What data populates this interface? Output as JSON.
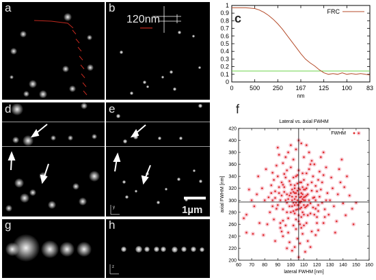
{
  "panel_labels": {
    "a": "a",
    "b": "b",
    "c": "c",
    "d": "d",
    "e": "e",
    "f": "f",
    "g": "g",
    "h": "h"
  },
  "annotation_120nm": "120nm",
  "scale_bar_label": "1µm",
  "axis_glyphs": {
    "y": "y",
    "z": "z"
  },
  "chart_data": [
    {
      "id": "c",
      "type": "line",
      "series": [
        {
          "name": "FRC",
          "color": "#b44a28",
          "x": [
            0,
            200,
            400,
            600,
            800,
            1000,
            1200,
            1400,
            1600,
            1800,
            2000,
            2200,
            2400,
            2600,
            2800,
            3000,
            3200,
            3400,
            3600,
            3800,
            4000,
            4200,
            4400,
            4600,
            4800,
            5000,
            5200,
            5400,
            5600,
            5800,
            6000
          ],
          "y": [
            0.97,
            0.97,
            0.97,
            0.97,
            0.965,
            0.96,
            0.94,
            0.91,
            0.87,
            0.82,
            0.76,
            0.69,
            0.61,
            0.53,
            0.45,
            0.37,
            0.3,
            0.25,
            0.21,
            0.16,
            0.12,
            0.1,
            0.11,
            0.1,
            0.12,
            0.1,
            0.11,
            0.1,
            0.11,
            0.1,
            0.09
          ]
        }
      ],
      "threshold": {
        "value": 0.143,
        "color": "#6bd34a"
      },
      "xlim": [
        0,
        6000
      ],
      "ylim": [
        0,
        1
      ],
      "x_ticks": [
        0,
        1000,
        2000,
        3000,
        4000,
        5000,
        6000
      ],
      "x_tick_labels": [
        "0",
        "500",
        "250",
        "167",
        "125",
        "100",
        "83"
      ],
      "y_ticks": [
        0,
        0.1,
        0.2,
        0.3,
        0.4,
        0.5,
        0.6,
        0.7,
        0.8,
        0.9,
        1
      ],
      "y_tick_labels": [
        "0",
        "0.1",
        "0.2",
        "0.3",
        "0.4",
        "0.5",
        "0.6",
        "0.7",
        "0.8",
        "0.9",
        "1"
      ],
      "xlabel": "nm",
      "ylabel": "",
      "legend_label": "FRC",
      "legend_position": "top-right"
    },
    {
      "id": "f",
      "type": "scatter",
      "title": "Lateral vs. axial FWHM",
      "xlabel": "lateral FWHM [nm]",
      "ylabel": "axial FWHM [nm]",
      "xlim": [
        60,
        160
      ],
      "ylim": [
        200,
        420
      ],
      "x_ticks": [
        60,
        70,
        80,
        90,
        100,
        110,
        120,
        130,
        140,
        150,
        160
      ],
      "y_ticks": [
        200,
        220,
        240,
        260,
        280,
        300,
        320,
        340,
        360,
        380,
        400,
        420
      ],
      "crosshair": {
        "x": 106,
        "y": 297
      },
      "legend_label": "FWHM",
      "legend_position": "top-right",
      "point_color": "#e03030",
      "points": [
        [
          103,
          312
        ],
        [
          107,
          298
        ],
        [
          110,
          305
        ],
        [
          99,
          290
        ],
        [
          112,
          320
        ],
        [
          105,
          285
        ],
        [
          108,
          330
        ],
        [
          101,
          300
        ],
        [
          115,
          295
        ],
        [
          97,
          310
        ],
        [
          106,
          275
        ],
        [
          109,
          345
        ],
        [
          104,
          268
        ],
        [
          111,
          288
        ],
        [
          95,
          322
        ],
        [
          118,
          305
        ],
        [
          102,
          338
        ],
        [
          107,
          260
        ],
        [
          113,
          275
        ],
        [
          100,
          355
        ],
        [
          116,
          330
        ],
        [
          94,
          285
        ],
        [
          108,
          312
        ],
        [
          105,
          300
        ],
        [
          110,
          292
        ],
        [
          103,
          325
        ],
        [
          98,
          270
        ],
        [
          120,
          315
        ],
        [
          106,
          350
        ],
        [
          112,
          262
        ],
        [
          92,
          300
        ],
        [
          117,
          288
        ],
        [
          104,
          340
        ],
        [
          109,
          280
        ],
        [
          101,
          318
        ],
        [
          114,
          352
        ],
        [
          96,
          338
        ],
        [
          107,
          305
        ],
        [
          110,
          318
        ],
        [
          103,
          292
        ],
        [
          99,
          308
        ],
        [
          111,
          300
        ],
        [
          105,
          328
        ],
        [
          108,
          272
        ],
        [
          102,
          282
        ],
        [
          113,
          310
        ],
        [
          106,
          292
        ],
        [
          100,
          326
        ],
        [
          115,
          278
        ],
        [
          97,
          296
        ],
        [
          104,
          306
        ],
        [
          109,
          322
        ],
        [
          112,
          290
        ],
        [
          95,
          314
        ],
        [
          119,
          300
        ],
        [
          103,
          278
        ],
        [
          107,
          318
        ],
        [
          110,
          334
        ],
        [
          101,
          290
        ],
        [
          106,
          310
        ],
        [
          108,
          298
        ],
        [
          105,
          316
        ],
        [
          111,
          306
        ],
        [
          98,
          302
        ],
        [
          113,
          326
        ],
        [
          104,
          296
        ],
        [
          102,
          314
        ],
        [
          107,
          286
        ],
        [
          109,
          302
        ],
        [
          100,
          280
        ],
        [
          116,
          316
        ],
        [
          94,
          326
        ],
        [
          121,
          292
        ],
        [
          106,
          265
        ],
        [
          112,
          345
        ],
        [
          103,
          302
        ],
        [
          108,
          288
        ],
        [
          105,
          342
        ],
        [
          110,
          276
        ],
        [
          99,
          332
        ],
        [
          114,
          300
        ],
        [
          97,
          280
        ],
        [
          107,
          330
        ],
        [
          111,
          318
        ],
        [
          104,
          284
        ],
        [
          102,
          296
        ],
        [
          109,
          310
        ],
        [
          106,
          320
        ],
        [
          113,
          292
        ],
        [
          100,
          312
        ],
        [
          117,
          304
        ],
        [
          96,
          300
        ],
        [
          105,
          292
        ],
        [
          108,
          306
        ],
        [
          103,
          320
        ],
        [
          110,
          300
        ],
        [
          101,
          306
        ],
        [
          107,
          296
        ],
        [
          112,
          308
        ],
        [
          104,
          312
        ],
        [
          124,
          330
        ],
        [
          88,
          315
        ],
        [
          126,
          285
        ],
        [
          86,
          300
        ],
        [
          128,
          312
        ],
        [
          90,
          340
        ],
        [
          122,
          348
        ],
        [
          84,
          280
        ],
        [
          130,
          300
        ],
        [
          92,
          262
        ],
        [
          125,
          262
        ],
        [
          89,
          358
        ],
        [
          127,
          355
        ],
        [
          85,
          325
        ],
        [
          132,
          320
        ],
        [
          93,
          248
        ],
        [
          121,
          250
        ],
        [
          87,
          268
        ],
        [
          129,
          276
        ],
        [
          91,
          376
        ],
        [
          123,
          372
        ],
        [
          83,
          305
        ],
        [
          131,
          338
        ],
        [
          94,
          240
        ],
        [
          119,
          242
        ],
        [
          86,
          346
        ],
        [
          133,
          290
        ],
        [
          88,
          232
        ],
        [
          125,
          380
        ],
        [
          90,
          388
        ],
        [
          136,
          310
        ],
        [
          80,
          300
        ],
        [
          138,
          330
        ],
        [
          78,
          320
        ],
        [
          140,
          295
        ],
        [
          75,
          340
        ],
        [
          142,
          275
        ],
        [
          72,
          290
        ],
        [
          135,
          265
        ],
        [
          82,
          260
        ],
        [
          137,
          352
        ],
        [
          76,
          262
        ],
        [
          139,
          368
        ],
        [
          81,
          352
        ],
        [
          134,
          246
        ],
        [
          79,
          242
        ],
        [
          141,
          322
        ],
        [
          74,
          310
        ],
        [
          143,
          340
        ],
        [
          70,
          300
        ],
        [
          145,
          308
        ],
        [
          68,
          318
        ],
        [
          147,
          286
        ],
        [
          66,
          276
        ],
        [
          150,
          296
        ],
        [
          64,
          270
        ],
        [
          152,
          412
        ],
        [
          66,
          246
        ],
        [
          148,
          260
        ],
        [
          71,
          244
        ],
        [
          106,
          400
        ],
        [
          108,
          395
        ],
        [
          104,
          385
        ],
        [
          110,
          372
        ],
        [
          102,
          368
        ],
        [
          112,
          392
        ],
        [
          100,
          392
        ],
        [
          114,
          380
        ],
        [
          98,
          380
        ],
        [
          116,
          366
        ],
        [
          105,
          236
        ],
        [
          107,
          228
        ],
        [
          103,
          222
        ],
        [
          109,
          244
        ],
        [
          101,
          216
        ],
        [
          111,
          214
        ],
        [
          99,
          230
        ],
        [
          113,
          232
        ],
        [
          97,
          220
        ],
        [
          115,
          222
        ],
        [
          106,
          205
        ],
        [
          104,
          252
        ],
        [
          108,
          254
        ],
        [
          102,
          258
        ],
        [
          110,
          258
        ],
        [
          118,
          360
        ],
        [
          94,
          362
        ],
        [
          120,
          262
        ],
        [
          92,
          254
        ],
        [
          96,
          372
        ],
        [
          117,
          340
        ],
        [
          95,
          344
        ],
        [
          119,
          324
        ],
        [
          93,
          330
        ],
        [
          121,
          334
        ],
        [
          91,
          322
        ],
        [
          118,
          276
        ],
        [
          96,
          258
        ],
        [
          120,
          272
        ],
        [
          94,
          266
        ],
        [
          122,
          306
        ],
        [
          90,
          292
        ],
        [
          124,
          296
        ],
        [
          88,
          304
        ],
        [
          123,
          318
        ],
        [
          89,
          286
        ],
        [
          115,
          360
        ],
        [
          97,
          350
        ],
        [
          116,
          248
        ],
        [
          98,
          246
        ],
        [
          125,
          342
        ],
        [
          87,
          334
        ],
        [
          126,
          272
        ],
        [
          86,
          290
        ],
        [
          127,
          300
        ],
        [
          85,
          312
        ],
        [
          119,
          286
        ],
        [
          93,
          308
        ],
        [
          121,
          282
        ],
        [
          91,
          312
        ]
      ]
    }
  ]
}
